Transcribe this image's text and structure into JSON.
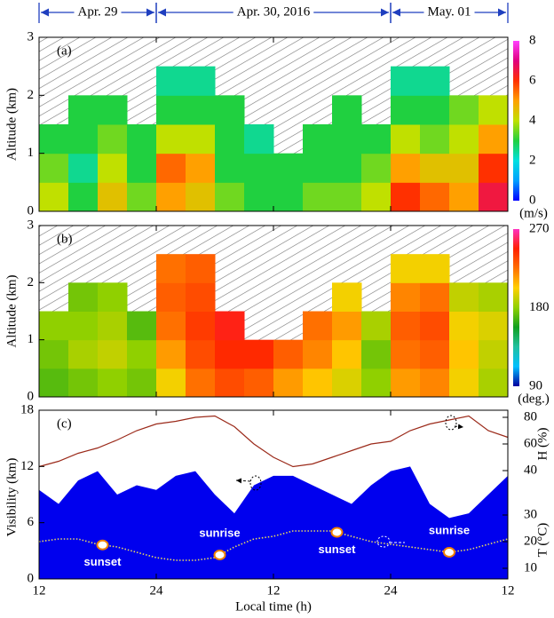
{
  "date_spans": [
    {
      "label": "Apr. 29",
      "from": 0,
      "to": 12
    },
    {
      "label": "Apr. 30, 2016",
      "from": 12,
      "to": 36
    },
    {
      "label": "May. 01",
      "from": 36,
      "to": 48
    }
  ],
  "chart_data": [
    {
      "type": "heatmap",
      "label": "(a)",
      "ylabel": "Altitude (km)",
      "xlim": [
        0,
        48
      ],
      "ylim": [
        0,
        3
      ],
      "yticks": [
        0,
        1,
        2,
        3
      ],
      "x_edges": [
        0,
        3,
        6,
        9,
        12,
        15,
        18,
        21,
        24,
        27,
        30,
        33,
        36,
        39,
        42,
        45,
        48
      ],
      "y_edges": [
        0,
        0.5,
        1,
        1.5,
        2,
        2.5,
        3
      ],
      "z": [
        [
          4,
          3.5,
          3,
          null,
          null,
          null
        ],
        [
          3,
          2.5,
          3,
          3,
          null,
          null
        ],
        [
          4.5,
          4,
          3.5,
          3,
          null,
          null
        ],
        [
          3.5,
          3,
          3,
          null,
          null,
          null
        ],
        [
          5,
          5.5,
          4,
          3,
          2.5,
          null
        ],
        [
          4.5,
          5,
          4,
          3,
          2.5,
          null
        ],
        [
          3.5,
          3,
          3,
          3,
          null,
          null
        ],
        [
          3,
          3,
          2.5,
          null,
          null,
          null
        ],
        [
          3,
          3,
          null,
          null,
          null,
          null
        ],
        [
          3.5,
          3,
          3,
          null,
          null,
          null
        ],
        [
          3.5,
          3,
          3,
          3,
          null,
          null
        ],
        [
          4,
          3.5,
          3,
          null,
          null,
          null
        ],
        [
          6,
          5,
          4,
          3,
          2.5,
          null
        ],
        [
          5.5,
          4.5,
          3.5,
          3,
          2.5,
          null
        ],
        [
          5,
          4.5,
          4,
          3.5,
          null,
          null
        ],
        [
          6.5,
          6,
          5,
          4,
          null,
          null
        ]
      ],
      "colorbar": {
        "lim": [
          0,
          8
        ],
        "ticks": [
          0,
          2,
          4,
          6,
          8
        ],
        "unit": "(m/s)",
        "colors": [
          "#0000ff",
          "#00a0ff",
          "#00e0e0",
          "#20d040",
          "#c0e000",
          "#ffa000",
          "#ff3000",
          "#e0007f",
          "#ff40ff"
        ]
      }
    },
    {
      "type": "heatmap",
      "label": "(b)",
      "ylabel": "Altitude (km)",
      "xlim": [
        0,
        48
      ],
      "ylim": [
        0,
        3
      ],
      "yticks": [
        0,
        1,
        2,
        3
      ],
      "x_edges": [
        0,
        3,
        6,
        9,
        12,
        15,
        18,
        21,
        24,
        27,
        30,
        33,
        36,
        39,
        42,
        45,
        48
      ],
      "y_edges": [
        0,
        0.5,
        1,
        1.5,
        2,
        2.5,
        3
      ],
      "z": [
        [
          170,
          175,
          180,
          null,
          null,
          null
        ],
        [
          175,
          185,
          180,
          175,
          null,
          null
        ],
        [
          180,
          190,
          185,
          180,
          null,
          null
        ],
        [
          175,
          180,
          170,
          null,
          null,
          null
        ],
        [
          200,
          215,
          225,
          230,
          225,
          null
        ],
        [
          225,
          235,
          240,
          235,
          230,
          null
        ],
        [
          235,
          245,
          250,
          null,
          null,
          null
        ],
        [
          230,
          245,
          null,
          null,
          null,
          null
        ],
        [
          215,
          230,
          null,
          null,
          null,
          null
        ],
        [
          205,
          220,
          225,
          null,
          null,
          null
        ],
        [
          195,
          205,
          215,
          200,
          null,
          null
        ],
        [
          180,
          175,
          185,
          null,
          null,
          null
        ],
        [
          215,
          225,
          230,
          220,
          200,
          null
        ],
        [
          220,
          230,
          235,
          225,
          200,
          null
        ],
        [
          200,
          205,
          200,
          190,
          null,
          null
        ],
        [
          185,
          190,
          195,
          185,
          null,
          null
        ]
      ],
      "colorbar": {
        "lim": [
          90,
          270
        ],
        "ticks": [
          90,
          180,
          270
        ],
        "unit": "(deg.)",
        "colors": [
          "#0000a0",
          "#00c0ff",
          "#20c0a0",
          "#10a020",
          "#90d000",
          "#ffd000",
          "#ff7000",
          "#ff2000",
          "#ff30c0"
        ]
      }
    },
    {
      "type": "multi-axis",
      "label": "(c)",
      "ylabel": "Visibility (km)",
      "y2label": "H (%)",
      "y3label": "T (°C)",
      "xlabel": "Local time (h)",
      "xlim": [
        0,
        48
      ],
      "xticks": [
        {
          "value": 0,
          "label": "12"
        },
        {
          "value": 12,
          "label": "24"
        },
        {
          "value": 24,
          "label": "12"
        },
        {
          "value": 36,
          "label": "24"
        },
        {
          "value": 48,
          "label": "12"
        }
      ],
      "ylim": [
        0,
        18
      ],
      "yticks": [
        0,
        6,
        12,
        18
      ],
      "y2lim": [
        40,
        80
      ],
      "y2ticks": [
        40,
        60,
        80
      ],
      "y3lim": [
        10,
        30
      ],
      "y3ticks": [
        10,
        20,
        30
      ],
      "x": [
        0,
        2,
        4,
        6,
        8,
        10,
        12,
        14,
        16,
        18,
        20,
        22,
        24,
        26,
        28,
        30,
        32,
        34,
        36,
        38,
        40,
        42,
        44,
        46,
        48
      ],
      "series": [
        {
          "style": "area",
          "color": "#0000ee",
          "values": [
            9.5,
            8,
            10.5,
            11.5,
            9,
            10,
            9.5,
            11,
            11.5,
            9,
            7,
            10,
            11,
            11,
            10,
            9,
            8,
            10,
            11.5,
            12,
            8,
            6.5,
            7,
            9,
            11
          ]
        },
        {
          "style": "line",
          "axis": "y2",
          "color": "#9b2a1a",
          "values": [
            43,
            47,
            53,
            57,
            63,
            70,
            75,
            77,
            80,
            81,
            73,
            60,
            50,
            43,
            45,
            50,
            55,
            60,
            62,
            70,
            75,
            78,
            81,
            70,
            65
          ]
        },
        {
          "style": "dotted",
          "axis": "y3",
          "color": "#e8d860",
          "values": [
            20,
            21,
            21,
            19,
            18,
            16,
            14,
            13,
            13,
            14,
            18,
            21,
            22,
            24,
            24,
            24,
            22,
            20,
            19,
            18,
            17,
            16,
            17,
            19,
            21
          ]
        }
      ],
      "annotations": [
        {
          "text": "sunset",
          "x": 6.5
        },
        {
          "text": "sunrise",
          "x": 18.5
        },
        {
          "text": "sunset",
          "x": 30.5
        },
        {
          "text": "sunrise",
          "x": 42
        }
      ]
    }
  ]
}
